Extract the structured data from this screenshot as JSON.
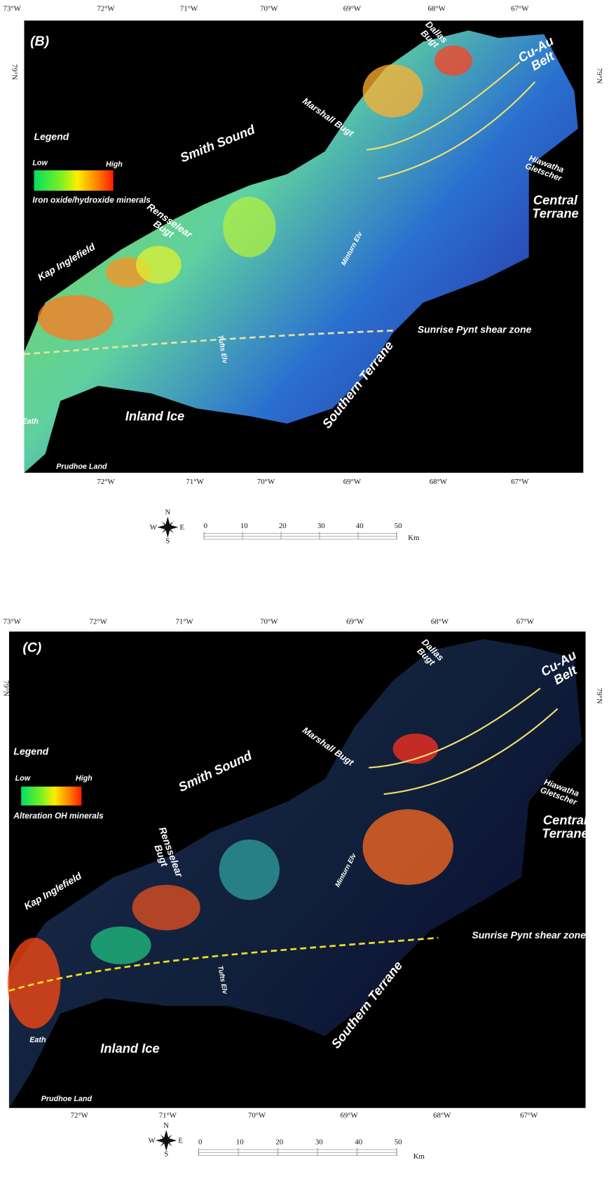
{
  "panels": [
    {
      "label": "(B)",
      "top_labels": [
        "73°W",
        "72°W",
        "71°W",
        "70°W",
        "69°W",
        "68°W",
        "67°W"
      ],
      "bottom_labels": [
        "72°W",
        "71°W",
        "70°W",
        "69°W",
        "68°W",
        "67°W"
      ],
      "lat_labels": [
        "79°N",
        "79°N"
      ],
      "legend": {
        "title": "Legend",
        "low": "Low",
        "high": "High",
        "caption": "Iron oxide/hydroxide minerals"
      },
      "places": [
        [
          "Smith Sound"
        ],
        [
          "Dallas",
          "Bugt"
        ],
        [
          "Cu-Au",
          "Belt"
        ],
        [
          "Marshall Bugt"
        ],
        [
          "Hiawatha",
          "Gletscher"
        ],
        [
          "Central",
          "Terrane"
        ],
        [
          "Rensselear",
          "Bugt"
        ],
        [
          "Kap Inglefield"
        ],
        [
          "Minturn Elv"
        ],
        [
          "Sunrise Pynt shear zone"
        ],
        [
          "Tufts Elv"
        ],
        [
          "Southern Terrane"
        ],
        [
          "Inland Ice"
        ],
        [
          "Eath"
        ],
        [
          "Prudhoe Land"
        ]
      ],
      "scale": {
        "ticks": [
          0,
          10,
          20,
          30,
          40,
          50
        ],
        "unit": "Km"
      },
      "compass": [
        "N",
        "S",
        "W",
        "E"
      ]
    },
    {
      "label": "(C)",
      "top_labels": [
        "73°W",
        "72°W",
        "71°W",
        "70°W",
        "69°W",
        "68°W",
        "67°W"
      ],
      "bottom_labels": [
        "72°W",
        "71°W",
        "70°W",
        "69°W",
        "68°W",
        "67°W"
      ],
      "lat_labels": [
        "79°N",
        "79°N"
      ],
      "legend": {
        "title": "Legend",
        "low": "Low",
        "high": "High",
        "caption": "Alteration OH minerals"
      },
      "places": [
        [
          "Smith Sound"
        ],
        [
          "Dallas",
          "Bugt"
        ],
        [
          "Cu-Au",
          "Belt"
        ],
        [
          "Marshall Bugt"
        ],
        [
          "Hiawatha",
          "Gletscher"
        ],
        [
          "Central",
          "Terrane"
        ],
        [
          "Rensselear",
          "Bugt"
        ],
        [
          "Kap Inglefield"
        ],
        [
          "Minturn Elv"
        ],
        [
          "Sunrise Pynt shear zone"
        ],
        [
          "Tufts Elv"
        ],
        [
          "Southern Terrane"
        ],
        [
          "Inland Ice"
        ],
        [
          "Eath"
        ],
        [
          "Prudhoe Land"
        ]
      ],
      "scale": {
        "ticks": [
          0,
          10,
          20,
          30,
          40,
          50
        ],
        "unit": "Km"
      },
      "compass": [
        "N",
        "S",
        "W",
        "E"
      ]
    }
  ]
}
